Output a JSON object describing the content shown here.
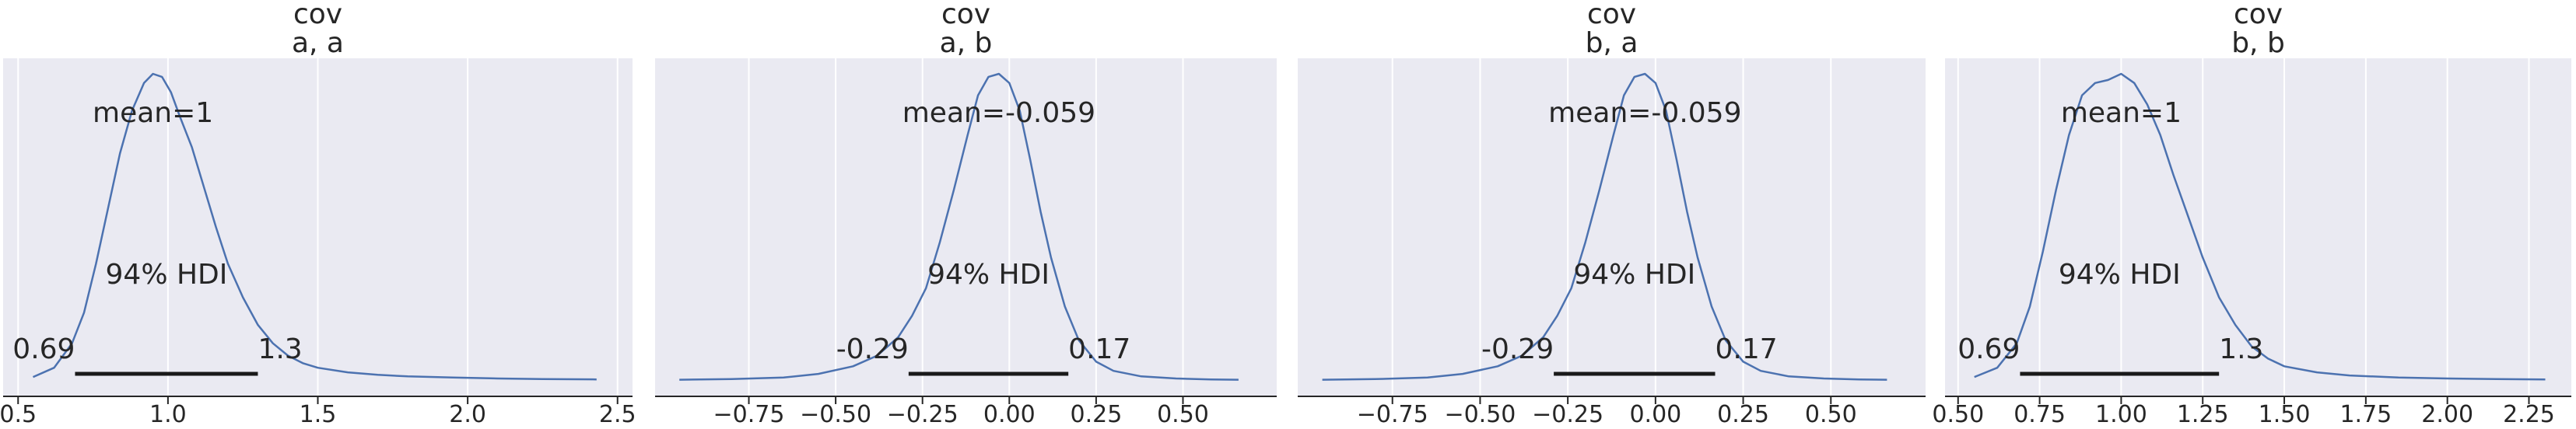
{
  "chart_data": [
    {
      "type": "line",
      "title": [
        "cov",
        "a, a"
      ],
      "xlim": [
        0.45,
        2.55
      ],
      "xticks": [
        0.5,
        1.0,
        1.5,
        2.0,
        2.5
      ],
      "xtick_labels": [
        "0.5",
        "1.0",
        "1.5",
        "2.0",
        "2.5"
      ],
      "mean_label": "mean=1",
      "hdi_label": "94% HDI",
      "hdi_low": 0.69,
      "hdi_high": 1.3,
      "hdi_low_label": "0.69",
      "hdi_high_label": "1.3",
      "series": [
        {
          "x": [
            0.55,
            0.62,
            0.68,
            0.72,
            0.76,
            0.8,
            0.84,
            0.88,
            0.92,
            0.95,
            0.98,
            1.01,
            1.04,
            1.08,
            1.12,
            1.16,
            1.2,
            1.25,
            1.3,
            1.35,
            1.4,
            1.45,
            1.5,
            1.6,
            1.7,
            1.8,
            1.95,
            2.1,
            2.25,
            2.43
          ],
          "y": [
            0.01,
            0.04,
            0.12,
            0.22,
            0.38,
            0.56,
            0.74,
            0.88,
            0.97,
            1.0,
            0.99,
            0.94,
            0.86,
            0.76,
            0.63,
            0.5,
            0.38,
            0.27,
            0.18,
            0.12,
            0.08,
            0.055,
            0.04,
            0.025,
            0.017,
            0.012,
            0.008,
            0.005,
            0.003,
            0.002
          ]
        }
      ]
    },
    {
      "type": "line",
      "title": [
        "cov",
        "a, b"
      ],
      "xlim": [
        -1.02,
        0.77
      ],
      "xticks": [
        -0.75,
        -0.5,
        -0.25,
        0.0,
        0.25,
        0.5
      ],
      "xtick_labels": [
        "−0.75",
        "−0.50",
        "−0.25",
        "0.00",
        "0.25",
        "0.50"
      ],
      "mean_label": "mean=-0.059",
      "hdi_label": "94% HDI",
      "hdi_low": -0.29,
      "hdi_high": 0.17,
      "hdi_low_label": "-0.29",
      "hdi_high_label": "0.17",
      "series": [
        {
          "x": [
            -0.95,
            -0.8,
            -0.65,
            -0.55,
            -0.45,
            -0.38,
            -0.32,
            -0.28,
            -0.24,
            -0.2,
            -0.16,
            -0.12,
            -0.09,
            -0.06,
            -0.03,
            0.0,
            0.03,
            0.06,
            0.09,
            0.12,
            0.16,
            0.2,
            0.25,
            0.3,
            0.38,
            0.48,
            0.58,
            0.66
          ],
          "y": [
            0.001,
            0.003,
            0.008,
            0.02,
            0.045,
            0.08,
            0.14,
            0.21,
            0.3,
            0.45,
            0.62,
            0.8,
            0.93,
            0.99,
            1.0,
            0.97,
            0.88,
            0.72,
            0.55,
            0.4,
            0.24,
            0.13,
            0.06,
            0.03,
            0.012,
            0.005,
            0.002,
            0.001
          ]
        }
      ]
    },
    {
      "type": "line",
      "title": [
        "cov",
        "b, a"
      ],
      "xlim": [
        -1.02,
        0.77
      ],
      "xticks": [
        -0.75,
        -0.5,
        -0.25,
        0.0,
        0.25,
        0.5
      ],
      "xtick_labels": [
        "−0.75",
        "−0.50",
        "−0.25",
        "0.00",
        "0.25",
        "0.50"
      ],
      "mean_label": "mean=-0.059",
      "hdi_label": "94% HDI",
      "hdi_low": -0.29,
      "hdi_high": 0.17,
      "hdi_low_label": "-0.29",
      "hdi_high_label": "0.17",
      "series": [
        {
          "x": [
            -0.95,
            -0.8,
            -0.65,
            -0.55,
            -0.45,
            -0.38,
            -0.32,
            -0.28,
            -0.24,
            -0.2,
            -0.16,
            -0.12,
            -0.09,
            -0.06,
            -0.03,
            0.0,
            0.03,
            0.06,
            0.09,
            0.12,
            0.16,
            0.2,
            0.25,
            0.3,
            0.38,
            0.48,
            0.58,
            0.66
          ],
          "y": [
            0.001,
            0.003,
            0.008,
            0.02,
            0.045,
            0.08,
            0.14,
            0.21,
            0.3,
            0.45,
            0.62,
            0.8,
            0.93,
            0.99,
            1.0,
            0.97,
            0.88,
            0.72,
            0.55,
            0.4,
            0.24,
            0.13,
            0.06,
            0.03,
            0.012,
            0.005,
            0.002,
            0.001
          ]
        }
      ]
    },
    {
      "type": "line",
      "title": [
        "cov",
        "b, b"
      ],
      "xlim": [
        0.46,
        2.38
      ],
      "xticks": [
        0.5,
        0.75,
        1.0,
        1.25,
        1.5,
        1.75,
        2.0,
        2.25
      ],
      "xtick_labels": [
        "0.50",
        "0.75",
        "1.00",
        "1.25",
        "1.50",
        "1.75",
        "2.00",
        "2.25"
      ],
      "mean_label": "mean=1",
      "hdi_label": "94% HDI",
      "hdi_low": 0.69,
      "hdi_high": 1.3,
      "hdi_low_label": "0.69",
      "hdi_high_label": "1.3",
      "series": [
        {
          "x": [
            0.55,
            0.62,
            0.68,
            0.72,
            0.76,
            0.8,
            0.84,
            0.88,
            0.92,
            0.96,
            1.0,
            1.04,
            1.08,
            1.12,
            1.16,
            1.2,
            1.25,
            1.3,
            1.35,
            1.4,
            1.45,
            1.5,
            1.6,
            1.7,
            1.85,
            2.0,
            2.15,
            2.3
          ],
          "y": [
            0.01,
            0.04,
            0.12,
            0.24,
            0.42,
            0.62,
            0.8,
            0.93,
            0.97,
            0.98,
            1.0,
            0.97,
            0.9,
            0.8,
            0.67,
            0.55,
            0.4,
            0.27,
            0.18,
            0.11,
            0.07,
            0.045,
            0.025,
            0.015,
            0.008,
            0.005,
            0.003,
            0.002
          ]
        }
      ]
    }
  ]
}
